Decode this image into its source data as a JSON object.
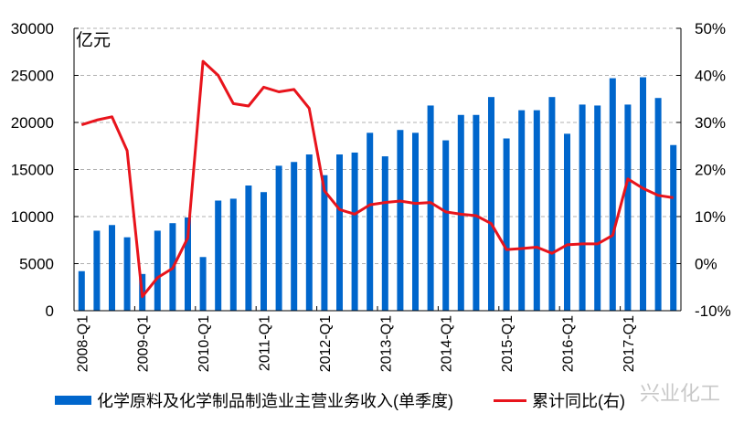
{
  "chart_data": {
    "type": "bar+line",
    "unit_label": "亿元",
    "categories": [
      "2008-Q1",
      "2008-Q2",
      "2008-Q3",
      "2008-Q4",
      "2009-Q1",
      "2009-Q2",
      "2009-Q3",
      "2009-Q4",
      "2010-Q1",
      "2010-Q2",
      "2010-Q3",
      "2010-Q4",
      "2011-Q1",
      "2011-Q2",
      "2011-Q3",
      "2011-Q4",
      "2012-Q1",
      "2012-Q2",
      "2012-Q3",
      "2012-Q4",
      "2013-Q1",
      "2013-Q2",
      "2013-Q3",
      "2013-Q4",
      "2014-Q1",
      "2014-Q2",
      "2014-Q3",
      "2014-Q4",
      "2015-Q1",
      "2015-Q2",
      "2015-Q3",
      "2015-Q4",
      "2016-Q1",
      "2016-Q2",
      "2016-Q3",
      "2016-Q4",
      "2017-Q1",
      "2017-Q2",
      "2017-Q3",
      "2017-Q4"
    ],
    "x_tick_labels": [
      "2008-Q1",
      "2009-Q1",
      "2010-Q1",
      "2011-Q1",
      "2012-Q1",
      "2013-Q1",
      "2014-Q1",
      "2015-Q1",
      "2016-Q1",
      "2017-Q1"
    ],
    "series": [
      {
        "name": "化学原料及化学制品制造业主营业务收入(单季度)",
        "type": "bar",
        "axis": "left",
        "color": "#0066cc",
        "values": [
          4200,
          8500,
          9100,
          7800,
          3900,
          8500,
          9300,
          9900,
          5700,
          11700,
          11900,
          13300,
          12600,
          15400,
          15800,
          16600,
          14400,
          16600,
          16800,
          18900,
          16400,
          19200,
          18900,
          21800,
          18100,
          20800,
          20800,
          22700,
          18300,
          21300,
          21300,
          22700,
          18800,
          21900,
          21800,
          24700,
          21900,
          24800,
          22600,
          17600
        ]
      },
      {
        "name": "累计同比(右)",
        "type": "line",
        "axis": "right",
        "color": "#e8141c",
        "values": [
          29.5,
          30.5,
          31.2,
          24,
          -7,
          -3,
          -1,
          5.5,
          43,
          40,
          34,
          33.5,
          37.5,
          36.5,
          37,
          33,
          15.5,
          11.5,
          10.5,
          12.5,
          13,
          13.3,
          12.8,
          13,
          11,
          10.5,
          10.2,
          8.5,
          3,
          3.2,
          3.5,
          2.2,
          4,
          4.2,
          4.2,
          6,
          18,
          16,
          14.5,
          14
        ]
      }
    ],
    "left_axis": {
      "ylim": [
        0,
        30000
      ],
      "ticks": [
        "0",
        "5000",
        "10000",
        "15000",
        "20000",
        "25000",
        "30000"
      ]
    },
    "right_axis": {
      "ylim": [
        -10,
        50
      ],
      "ticks": [
        "-10%",
        "0%",
        "10%",
        "20%",
        "30%",
        "40%",
        "50%"
      ]
    },
    "grid": true,
    "legend_placement": "bottom"
  },
  "watermark": "兴业化工"
}
